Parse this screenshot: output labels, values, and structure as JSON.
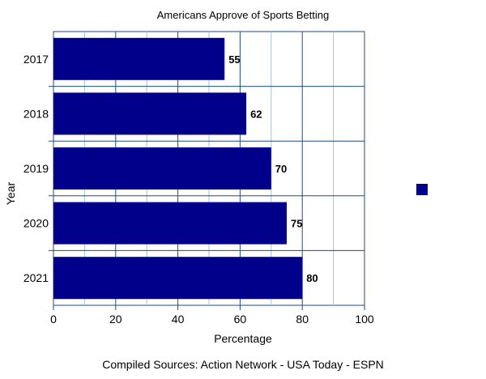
{
  "chart_data": {
    "type": "bar",
    "orientation": "horizontal",
    "title": "Americans Approve of Sports Betting",
    "xlabel": "Percentage",
    "ylabel": "Year",
    "caption": "Compiled Sources: Action Network - USA Today - ESPN",
    "categories": [
      "2017",
      "2018",
      "2019",
      "2020",
      "2021"
    ],
    "values": [
      55,
      62,
      70,
      75,
      80
    ],
    "data_labels": [
      "55",
      "62",
      "70",
      "75",
      "80"
    ],
    "xlim": [
      0,
      100
    ],
    "x_ticks": [
      0,
      20,
      40,
      60,
      80,
      100
    ],
    "x_tick_labels": [
      "0",
      "20",
      "40",
      "60",
      "80",
      "100"
    ],
    "grid": true,
    "legend": {
      "placement": "right",
      "entries": [
        ""
      ]
    },
    "colors": {
      "bar": "#00008B",
      "major_grid": "#1F4E79",
      "minor_grid": "#9DC3E6",
      "axis": "#1F4E79",
      "text": "#000000"
    }
  }
}
